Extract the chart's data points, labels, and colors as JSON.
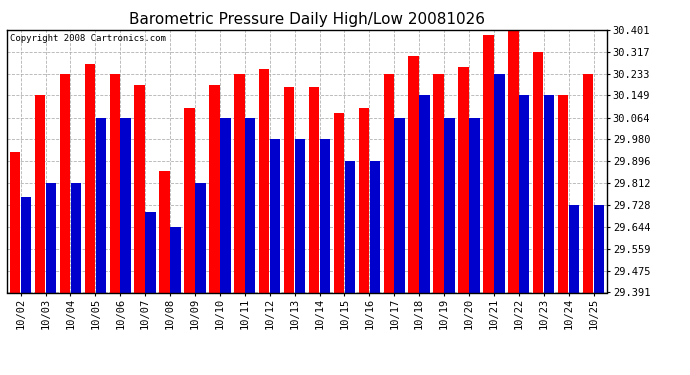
{
  "title": "Barometric Pressure Daily High/Low 20081026",
  "copyright": "Copyright 2008 Cartronics.com",
  "dates": [
    "10/02",
    "10/03",
    "10/04",
    "10/05",
    "10/06",
    "10/07",
    "10/08",
    "10/09",
    "10/10",
    "10/11",
    "10/12",
    "10/13",
    "10/14",
    "10/15",
    "10/16",
    "10/17",
    "10/18",
    "10/19",
    "10/20",
    "10/21",
    "10/22",
    "10/23",
    "10/24",
    "10/25"
  ],
  "high_values": [
    29.93,
    30.149,
    30.233,
    30.27,
    30.233,
    30.19,
    29.86,
    30.1,
    30.19,
    30.233,
    30.25,
    30.18,
    30.18,
    30.08,
    30.1,
    30.233,
    30.3,
    30.233,
    30.26,
    30.38,
    30.401,
    30.317,
    30.149,
    30.233
  ],
  "low_values": [
    29.76,
    29.812,
    29.812,
    30.064,
    30.064,
    29.7,
    29.644,
    29.812,
    30.064,
    30.064,
    29.98,
    29.98,
    29.98,
    29.896,
    29.896,
    30.064,
    30.149,
    30.064,
    30.064,
    30.233,
    30.149,
    30.149,
    29.728,
    29.728
  ],
  "bar_color_high": "#FF0000",
  "bar_color_low": "#0000CC",
  "bg_color": "#FFFFFF",
  "plot_bg_color": "#FFFFFF",
  "grid_color": "#AAAAAA",
  "ymin": 29.391,
  "ymax": 30.401,
  "yticks": [
    29.391,
    29.475,
    29.559,
    29.644,
    29.728,
    29.812,
    29.896,
    29.98,
    30.064,
    30.149,
    30.233,
    30.317,
    30.401
  ],
  "title_fontsize": 11,
  "tick_fontsize": 7.5
}
